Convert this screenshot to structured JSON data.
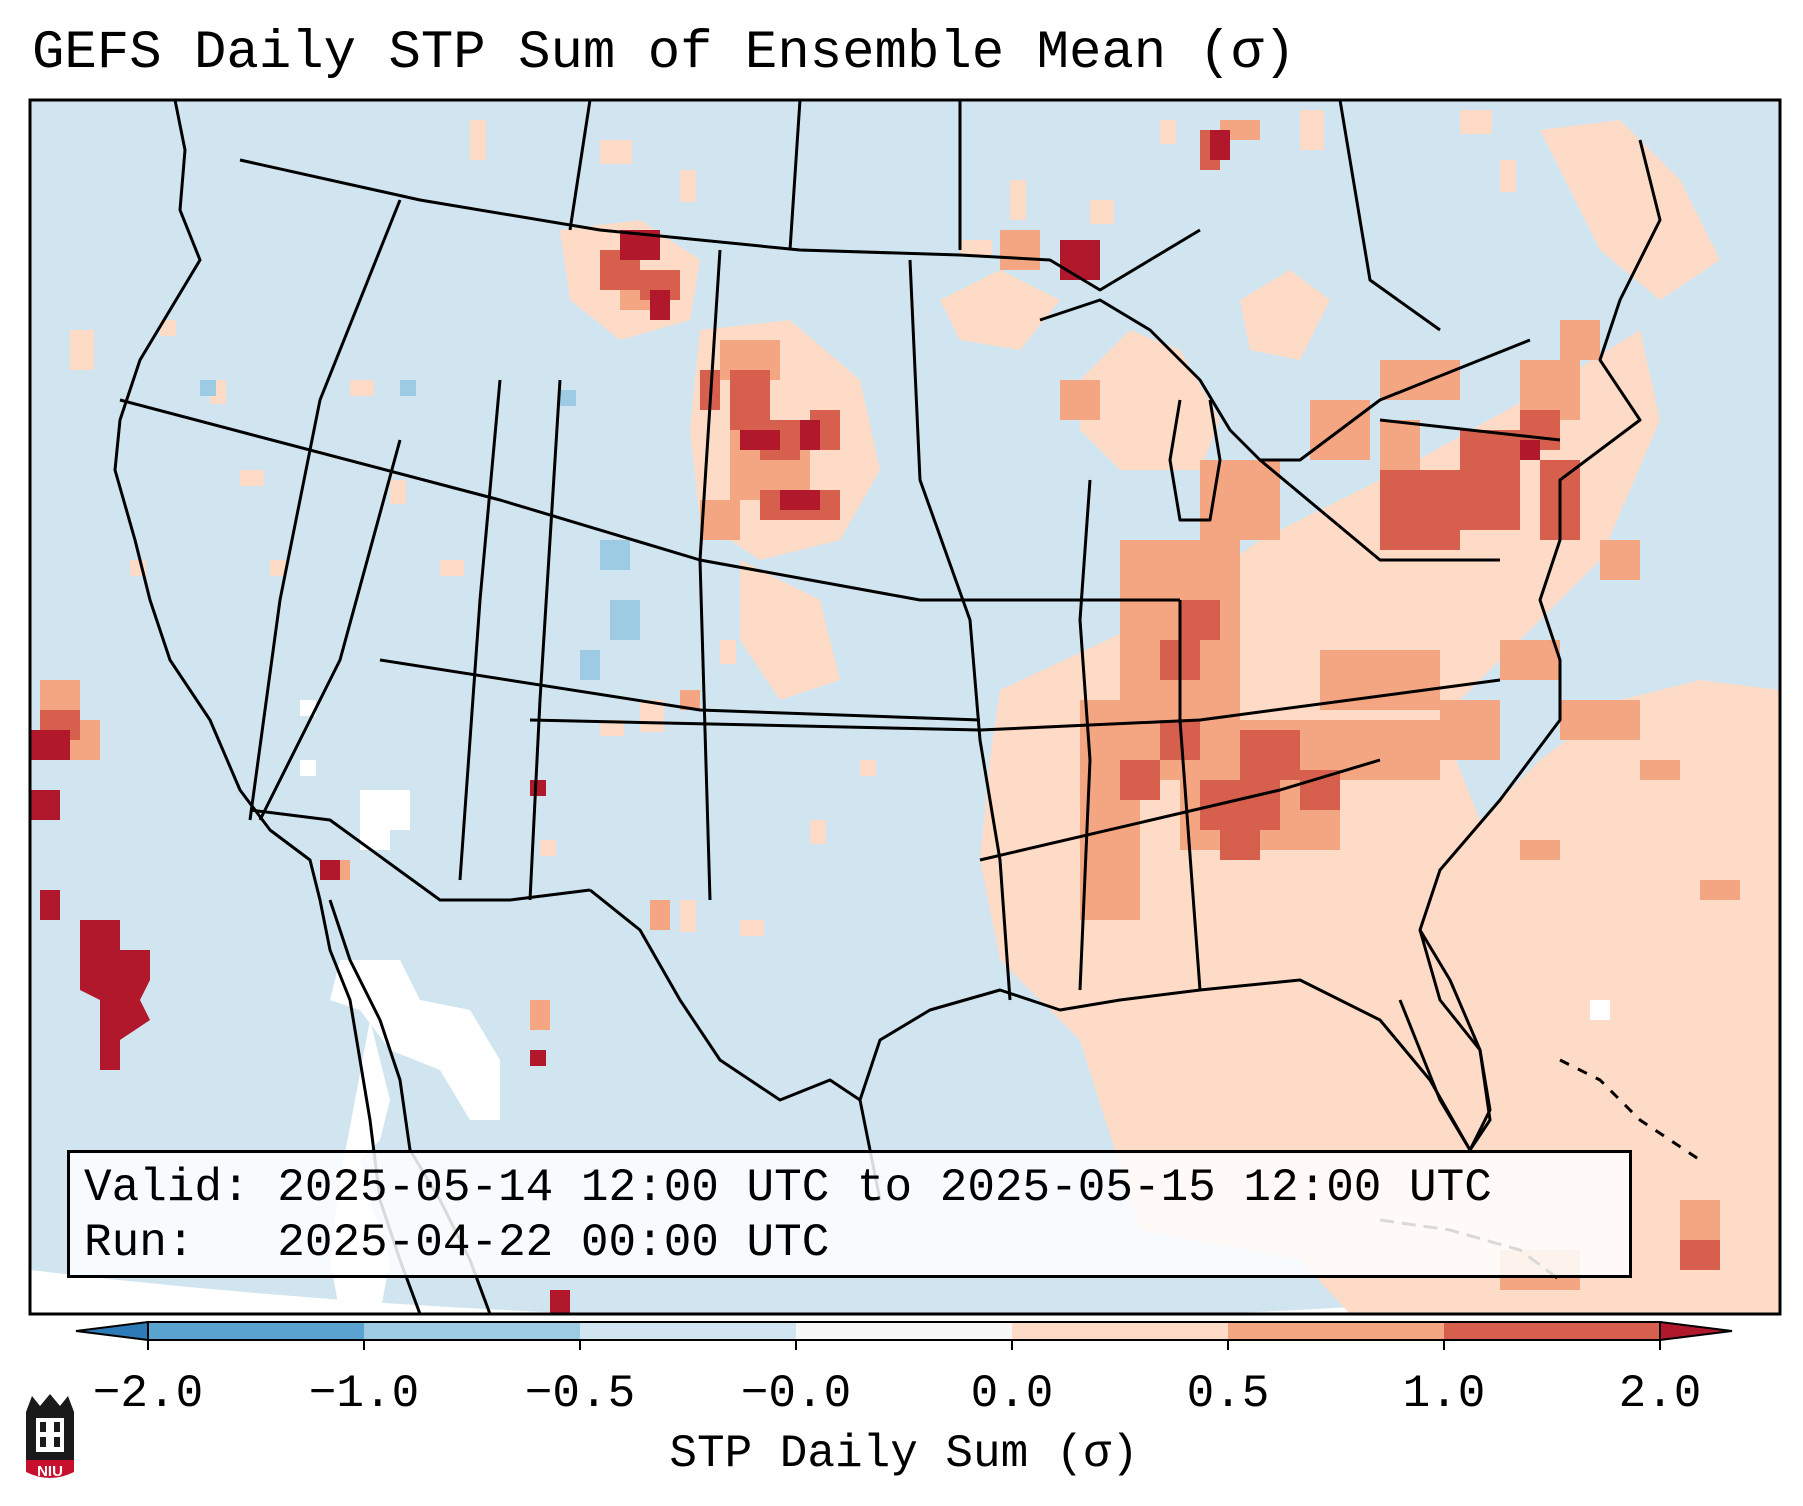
{
  "title": "GEFS Daily STP Sum of Ensemble Mean (σ)",
  "info": {
    "valid": "Valid: 2025-05-14 12:00 UTC to 2025-05-15 12:00 UTC",
    "run": "Run:   2025-04-22 00:00 UTC"
  },
  "colorbar": {
    "label": "STP Daily Sum (σ)",
    "ticks": [
      "−2.0",
      "−1.0",
      "−0.5",
      "−0.0",
      "0.0",
      "0.5",
      "1.0",
      "2.0"
    ],
    "colors": [
      "#2c7bb6",
      "#5aa3d0",
      "#9ccbe3",
      "#d1e5f0",
      "#fddbc7",
      "#f4a582",
      "#d6604d",
      "#b2182b"
    ]
  },
  "logo": {
    "text": "NIU"
  },
  "colors": {
    "ocean_background": "#d1e5f0",
    "pale_positive": "#fddbc7",
    "light_positive": "#f4a582",
    "mid_positive": "#d6604d",
    "strong_positive": "#b2182b",
    "pale_negative": "#9ccbe3",
    "border": "#000000"
  }
}
